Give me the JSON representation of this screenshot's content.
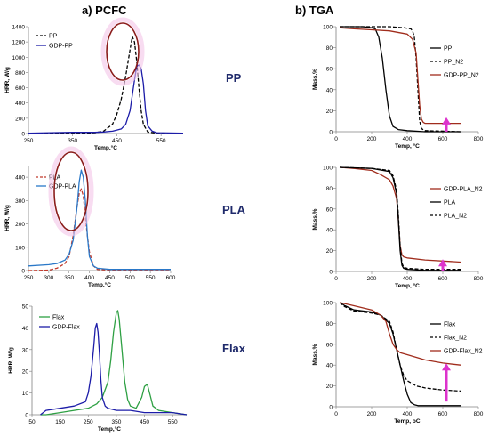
{
  "titles": {
    "left": "a) PCFC",
    "right": "b) TGA"
  },
  "rows": [
    "PP",
    "PLA",
    "Flax"
  ],
  "colors": {
    "black": "#000000",
    "blue": "#1c1ca8",
    "blue_light": "#2a78c8",
    "green": "#2ea043",
    "red": "#a02c1c",
    "red_dashed": "#c0392b",
    "pink": "#dd33cc",
    "halo": "#f4c4e8",
    "ellipse": "#8b1c1c"
  },
  "chart_data": [
    {
      "id": "pcfc-pp",
      "type": "line",
      "title": "",
      "xlabel": "Temp,°C",
      "ylabel": "HRR, W/g",
      "xlim": [
        250,
        600
      ],
      "ylim": [
        0,
        1400
      ],
      "xticks": [
        250,
        350,
        450,
        550
      ],
      "yticks": [
        0,
        200,
        400,
        600,
        800,
        1000,
        1200,
        1400
      ],
      "legend": "top-left",
      "annotation": "ellipse",
      "series": [
        {
          "name": "PP",
          "style": "dashed",
          "color": "#000000",
          "x": [
            250,
            300,
            350,
            380,
            400,
            420,
            440,
            450,
            460,
            470,
            480,
            485,
            490,
            495,
            500,
            505,
            510,
            520,
            540,
            600
          ],
          "y": [
            0,
            0,
            2,
            5,
            10,
            30,
            120,
            250,
            450,
            750,
            1100,
            1270,
            1200,
            950,
            600,
            300,
            120,
            20,
            5,
            0
          ]
        },
        {
          "name": "GDP-PP",
          "style": "solid",
          "color": "#1c1ca8",
          "x": [
            250,
            300,
            350,
            400,
            420,
            440,
            460,
            470,
            480,
            490,
            495,
            500,
            505,
            510,
            515,
            520,
            530,
            540,
            600
          ],
          "y": [
            5,
            10,
            15,
            15,
            20,
            30,
            60,
            120,
            300,
            700,
            880,
            900,
            850,
            650,
            300,
            100,
            30,
            10,
            5
          ]
        }
      ]
    },
    {
      "id": "pcfc-pla",
      "type": "line",
      "title": "",
      "xlabel": "Temp,°C",
      "ylabel": "HRR, W/g",
      "xlim": [
        250,
        600
      ],
      "ylim": [
        0,
        450
      ],
      "xticks": [
        250,
        300,
        350,
        400,
        450,
        500,
        550,
        600
      ],
      "yticks": [
        0,
        100,
        200,
        300,
        400
      ],
      "legend": "top-left",
      "annotation": "ellipse",
      "series": [
        {
          "name": "PLA",
          "style": "dashed",
          "color": "#c0392b",
          "x": [
            250,
            300,
            320,
            340,
            350,
            360,
            370,
            375,
            380,
            385,
            390,
            395,
            400,
            410,
            420,
            450,
            600
          ],
          "y": [
            0,
            2,
            10,
            30,
            60,
            150,
            280,
            330,
            350,
            320,
            230,
            150,
            80,
            20,
            5,
            2,
            0
          ]
        },
        {
          "name": "GDP-PLA",
          "style": "solid",
          "color": "#2a78c8",
          "x": [
            250,
            300,
            320,
            340,
            350,
            360,
            370,
            375,
            380,
            385,
            390,
            395,
            400,
            410,
            420,
            450,
            600
          ],
          "y": [
            20,
            25,
            30,
            45,
            70,
            130,
            280,
            380,
            430,
            400,
            300,
            150,
            60,
            20,
            10,
            5,
            5
          ]
        }
      ]
    },
    {
      "id": "pcfc-flax",
      "type": "line",
      "title": "",
      "xlabel": "Temp,°C",
      "ylabel": "HRR, W/g",
      "xlim": [
        50,
        600
      ],
      "ylim": [
        0,
        50
      ],
      "xticks": [
        50,
        150,
        250,
        350,
        450,
        550
      ],
      "yticks": [
        0,
        10,
        20,
        30,
        40,
        50
      ],
      "legend": "top-left",
      "annotation": "",
      "series": [
        {
          "name": "Flax",
          "style": "solid",
          "color": "#2ea043",
          "x": [
            80,
            100,
            150,
            200,
            250,
            280,
            300,
            320,
            330,
            340,
            350,
            355,
            360,
            370,
            380,
            390,
            400,
            420,
            440,
            450,
            460,
            470,
            480,
            500,
            550,
            600
          ],
          "y": [
            0,
            0,
            1,
            2,
            3,
            5,
            8,
            15,
            25,
            38,
            47,
            48,
            44,
            30,
            15,
            7,
            4,
            3,
            8,
            13,
            14,
            9,
            4,
            2,
            1,
            0
          ]
        },
        {
          "name": "GDP-Flax",
          "style": "solid",
          "color": "#1c1ca8",
          "x": [
            80,
            100,
            150,
            200,
            240,
            250,
            260,
            270,
            275,
            280,
            285,
            290,
            295,
            300,
            310,
            320,
            350,
            400,
            450,
            500,
            550,
            600
          ],
          "y": [
            0,
            2,
            3,
            4,
            6,
            10,
            18,
            32,
            40,
            42,
            38,
            28,
            16,
            8,
            4,
            3,
            2,
            2,
            1,
            1,
            1,
            0
          ]
        }
      ]
    },
    {
      "id": "tga-pp",
      "type": "line",
      "title": "",
      "xlabel": "Temp, °C",
      "ylabel": "Mass,%",
      "xlim": [
        0,
        800
      ],
      "ylim": [
        0,
        100
      ],
      "xticks": [
        0,
        200,
        400,
        600,
        800
      ],
      "yticks": [
        0,
        20,
        40,
        60,
        80,
        100
      ],
      "legend": "right",
      "annotation": "arrow",
      "series": [
        {
          "name": "PP",
          "style": "solid",
          "color": "#000000",
          "x": [
            20,
            150,
            200,
            220,
            240,
            260,
            280,
            300,
            320,
            350,
            400,
            500,
            700
          ],
          "y": [
            100,
            100,
            99,
            98,
            90,
            70,
            40,
            15,
            5,
            2,
            1,
            0,
            0
          ]
        },
        {
          "name": "PP_N2",
          "style": "dashed",
          "color": "#000000",
          "x": [
            20,
            300,
            380,
            420,
            430,
            440,
            450,
            460,
            470,
            480,
            500,
            700
          ],
          "y": [
            100,
            100,
            99,
            98,
            96,
            90,
            70,
            40,
            10,
            3,
            1,
            0
          ]
        },
        {
          "name": "GDP-PP_N2",
          "style": "solid",
          "color": "#a02c1c",
          "x": [
            20,
            100,
            200,
            300,
            400,
            430,
            450,
            460,
            470,
            480,
            490,
            500,
            700
          ],
          "y": [
            99,
            98,
            97,
            96,
            93,
            88,
            75,
            50,
            25,
            12,
            9,
            8,
            8
          ]
        }
      ]
    },
    {
      "id": "tga-pla",
      "type": "line",
      "title": "",
      "xlabel": "Temp, °C",
      "ylabel": "Mass,%",
      "xlim": [
        0,
        800
      ],
      "ylim": [
        0,
        100
      ],
      "xticks": [
        0,
        200,
        400,
        600,
        800
      ],
      "yticks": [
        0,
        20,
        40,
        60,
        80,
        100
      ],
      "legend": "right",
      "annotation": "arrow",
      "series": [
        {
          "name": "GDP-PLA_N2",
          "style": "solid",
          "color": "#a02c1c",
          "x": [
            20,
            100,
            200,
            250,
            300,
            320,
            340,
            350,
            360,
            370,
            380,
            400,
            500,
            700
          ],
          "y": [
            100,
            99,
            97,
            93,
            88,
            82,
            70,
            50,
            25,
            16,
            14,
            13,
            11,
            9
          ]
        },
        {
          "name": "PLA",
          "style": "solid",
          "color": "#000000",
          "x": [
            20,
            200,
            300,
            320,
            340,
            350,
            360,
            370,
            380,
            400,
            500,
            700
          ],
          "y": [
            100,
            99,
            96,
            90,
            75,
            50,
            20,
            6,
            3,
            2,
            1,
            1
          ]
        },
        {
          "name": "PLA_N2",
          "style": "dashed",
          "color": "#000000",
          "x": [
            20,
            200,
            300,
            320,
            340,
            350,
            360,
            370,
            380,
            400,
            500,
            700
          ],
          "y": [
            100,
            99,
            97,
            92,
            78,
            55,
            25,
            8,
            4,
            3,
            2,
            2
          ]
        }
      ]
    },
    {
      "id": "tga-flax",
      "type": "line",
      "title": "",
      "xlabel": "Temp, oC",
      "ylabel": "Mass,%",
      "xlim": [
        0,
        800
      ],
      "ylim": [
        0,
        100
      ],
      "xticks": [
        0,
        200,
        400,
        600,
        800
      ],
      "yticks": [
        0,
        20,
        40,
        60,
        80,
        100
      ],
      "legend": "right",
      "annotation": "arrow",
      "series": [
        {
          "name": "Flax",
          "style": "solid",
          "color": "#000000",
          "x": [
            20,
            50,
            100,
            200,
            250,
            300,
            320,
            340,
            360,
            380,
            400,
            420,
            440,
            460,
            500,
            700
          ],
          "y": [
            100,
            97,
            93,
            91,
            88,
            80,
            70,
            55,
            40,
            25,
            12,
            4,
            2,
            1,
            1,
            1
          ]
        },
        {
          "name": "Flax_N2",
          "style": "dashed",
          "color": "#000000",
          "x": [
            20,
            50,
            100,
            200,
            250,
            300,
            320,
            340,
            360,
            380,
            400,
            450,
            500,
            600,
            700
          ],
          "y": [
            100,
            96,
            92,
            90,
            88,
            82,
            72,
            55,
            40,
            30,
            25,
            20,
            18,
            16,
            15
          ]
        },
        {
          "name": "GDP-Flax_N2",
          "style": "solid",
          "color": "#a02c1c",
          "x": [
            20,
            50,
            100,
            200,
            250,
            280,
            300,
            320,
            340,
            360,
            400,
            500,
            600,
            700
          ],
          "y": [
            100,
            99,
            97,
            93,
            88,
            82,
            70,
            60,
            55,
            52,
            50,
            45,
            42,
            40
          ]
        }
      ]
    }
  ]
}
